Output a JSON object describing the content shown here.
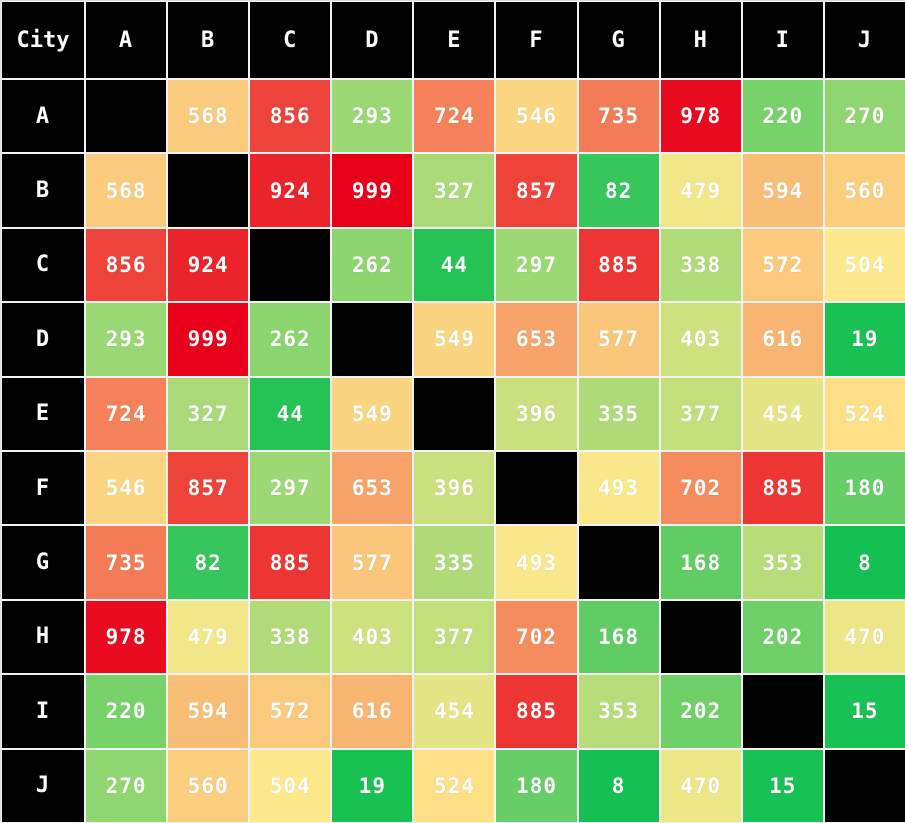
{
  "chart_data": {
    "type": "heatmap",
    "title": "",
    "corner_label": "City",
    "columns": [
      "A",
      "B",
      "C",
      "D",
      "E",
      "F",
      "G",
      "H",
      "I",
      "J"
    ],
    "rows": [
      "A",
      "B",
      "C",
      "D",
      "E",
      "F",
      "G",
      "H",
      "I",
      "J"
    ],
    "values": [
      [
        null,
        568,
        856,
        293,
        724,
        546,
        735,
        978,
        220,
        270
      ],
      [
        568,
        null,
        924,
        999,
        327,
        857,
        82,
        479,
        594,
        560
      ],
      [
        856,
        924,
        null,
        262,
        44,
        297,
        885,
        338,
        572,
        504
      ],
      [
        293,
        999,
        262,
        null,
        549,
        653,
        577,
        403,
        616,
        19
      ],
      [
        724,
        327,
        44,
        549,
        null,
        396,
        335,
        377,
        454,
        524
      ],
      [
        546,
        857,
        297,
        653,
        396,
        null,
        493,
        702,
        885,
        180
      ],
      [
        735,
        82,
        885,
        577,
        335,
        493,
        null,
        168,
        353,
        8
      ],
      [
        978,
        479,
        338,
        403,
        377,
        702,
        168,
        null,
        202,
        470
      ],
      [
        220,
        594,
        572,
        616,
        454,
        885,
        353,
        202,
        null,
        15
      ],
      [
        270,
        560,
        504,
        19,
        524,
        180,
        8,
        470,
        15,
        null
      ]
    ],
    "color_scale": {
      "low": "#14c052",
      "mid": "#fde98b",
      "high": "#e8001a",
      "diagonal": "#000000",
      "header": "#000000"
    }
  }
}
